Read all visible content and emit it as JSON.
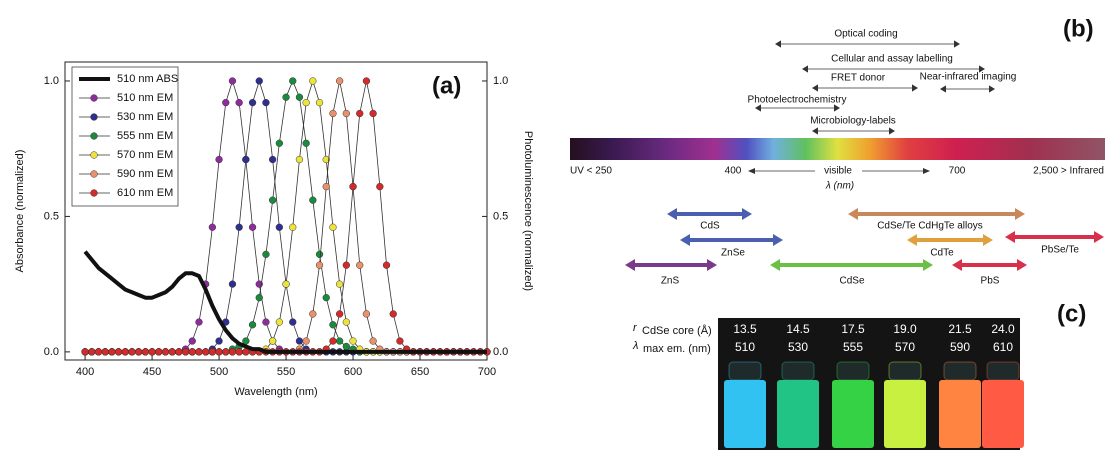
{
  "chart_data": {
    "type": "line",
    "panel_label": "(a)",
    "x_label": "Wavelength (nm)",
    "y_label": "Absorbance (normalized)",
    "y2_label": "Photoluminescence (normalized)",
    "x": [
      400,
      405,
      410,
      415,
      420,
      425,
      430,
      435,
      440,
      445,
      450,
      455,
      460,
      465,
      470,
      475,
      480,
      485,
      490,
      495,
      500,
      505,
      510,
      515,
      520,
      525,
      530,
      535,
      540,
      545,
      550,
      555,
      560,
      565,
      570,
      575,
      580,
      585,
      590,
      595,
      600,
      605,
      610,
      615,
      620,
      625,
      630,
      635,
      640,
      645,
      650,
      655,
      660,
      665,
      670,
      675,
      680,
      685,
      690,
      695,
      700
    ],
    "xlim": [
      385,
      700
    ],
    "ylim": [
      -0.03,
      1.07
    ],
    "y2lim": [
      -0.03,
      1.07
    ],
    "xticks": [
      400,
      450,
      500,
      550,
      600,
      650,
      700
    ],
    "yticks": [
      {
        "value": 0,
        "label": "0.0"
      },
      0.5,
      {
        "value": 1,
        "label": "1.0"
      }
    ],
    "y2ticks": [
      {
        "value": 0,
        "label": "0.0"
      },
      0.5,
      {
        "value": 1,
        "label": "1.0"
      }
    ],
    "legend": "upper left",
    "series": [
      {
        "name": "510 nm ABS",
        "color": "#111111",
        "line_width": 4,
        "axis": "y",
        "values": [
          0.37,
          0.34,
          0.31,
          0.29,
          0.27,
          0.25,
          0.23,
          0.22,
          0.21,
          0.2,
          0.2,
          0.21,
          0.22,
          0.24,
          0.27,
          0.29,
          0.29,
          0.28,
          0.23,
          0.17,
          0.12,
          0.08,
          0.05,
          0.03,
          0.02,
          0.01,
          0.01,
          0,
          0,
          0,
          0,
          0,
          0,
          0,
          0,
          0,
          0,
          0,
          0,
          0,
          0,
          0,
          0,
          0,
          0,
          0,
          0,
          0,
          0,
          0,
          0,
          0,
          0,
          0,
          0,
          0,
          0,
          0,
          0,
          0,
          0
        ]
      },
      {
        "name": "510 nm EM",
        "color": "#8e2c9e",
        "marker": "circle",
        "axis": "y2",
        "values": [
          0,
          0,
          0,
          0,
          0,
          0,
          0,
          0,
          0,
          0,
          0,
          0,
          0,
          0,
          0,
          0.01,
          0.04,
          0.11,
          0.25,
          0.46,
          0.71,
          0.92,
          1,
          0.92,
          0.71,
          0.46,
          0.25,
          0.11,
          0.04,
          0.01,
          0,
          0,
          0,
          0,
          0,
          0,
          0,
          0,
          0,
          0,
          0,
          0,
          0,
          0,
          0,
          0,
          0,
          0,
          0,
          0,
          0,
          0,
          0,
          0,
          0,
          0,
          0,
          0,
          0,
          0,
          0
        ]
      },
      {
        "name": "530 nm EM",
        "color": "#2e2f8f",
        "marker": "circle",
        "axis": "y2",
        "values": [
          0,
          0,
          0,
          0,
          0,
          0,
          0,
          0,
          0,
          0,
          0,
          0,
          0,
          0,
          0,
          0,
          0,
          0,
          0,
          0.01,
          0.04,
          0.11,
          0.25,
          0.46,
          0.71,
          0.92,
          1,
          0.92,
          0.71,
          0.46,
          0.25,
          0.11,
          0.04,
          0.01,
          0,
          0,
          0,
          0,
          0,
          0,
          0,
          0,
          0,
          0,
          0,
          0,
          0,
          0,
          0,
          0,
          0,
          0,
          0,
          0,
          0,
          0,
          0,
          0,
          0,
          0,
          0
        ]
      },
      {
        "name": "555 nm EM",
        "color": "#1b8a3c",
        "marker": "circle",
        "axis": "y2",
        "values": [
          0,
          0,
          0,
          0,
          0,
          0,
          0,
          0,
          0,
          0,
          0,
          0,
          0,
          0,
          0,
          0,
          0,
          0,
          0,
          0,
          0,
          0,
          0.01,
          0.02,
          0.04,
          0.1,
          0.2,
          0.36,
          0.56,
          0.77,
          0.94,
          1,
          0.94,
          0.77,
          0.56,
          0.36,
          0.2,
          0.1,
          0.04,
          0.02,
          0.01,
          0,
          0,
          0,
          0,
          0,
          0,
          0,
          0,
          0,
          0,
          0,
          0,
          0,
          0,
          0,
          0,
          0,
          0,
          0,
          0
        ]
      },
      {
        "name": "570 nm EM",
        "color": "#ece33c",
        "marker": "circle",
        "axis": "y2",
        "values": [
          0,
          0,
          0,
          0,
          0,
          0,
          0,
          0,
          0,
          0,
          0,
          0,
          0,
          0,
          0,
          0,
          0,
          0,
          0,
          0,
          0,
          0,
          0,
          0,
          0,
          0,
          0,
          0.01,
          0.04,
          0.11,
          0.25,
          0.46,
          0.71,
          0.92,
          1,
          0.92,
          0.71,
          0.46,
          0.25,
          0.11,
          0.04,
          0.01,
          0,
          0,
          0,
          0,
          0,
          0,
          0,
          0,
          0,
          0,
          0,
          0,
          0,
          0,
          0,
          0,
          0,
          0,
          0
        ]
      },
      {
        "name": "590 nm EM",
        "color": "#e8916a",
        "marker": "circle",
        "axis": "y2",
        "values": [
          0,
          0,
          0,
          0,
          0,
          0,
          0,
          0,
          0,
          0,
          0,
          0,
          0,
          0,
          0,
          0,
          0,
          0,
          0,
          0,
          0,
          0,
          0,
          0,
          0,
          0,
          0,
          0,
          0,
          0,
          0,
          0,
          0.01,
          0.04,
          0.14,
          0.32,
          0.61,
          0.88,
          1,
          0.88,
          0.61,
          0.32,
          0.14,
          0.04,
          0.01,
          0,
          0,
          0,
          0,
          0,
          0,
          0,
          0,
          0,
          0,
          0,
          0,
          0,
          0,
          0,
          0
        ]
      },
      {
        "name": "610 nm EM",
        "color": "#d42a2a",
        "marker": "circle",
        "axis": "y2",
        "values": [
          0,
          0,
          0,
          0,
          0,
          0,
          0,
          0,
          0,
          0,
          0,
          0,
          0,
          0,
          0,
          0,
          0,
          0,
          0,
          0,
          0,
          0,
          0,
          0,
          0,
          0,
          0,
          0,
          0,
          0,
          0,
          0,
          0,
          0,
          0,
          0,
          0.01,
          0.04,
          0.14,
          0.32,
          0.61,
          0.88,
          1,
          0.88,
          0.61,
          0.32,
          0.14,
          0.04,
          0.01,
          0,
          0,
          0,
          0,
          0,
          0,
          0,
          0,
          0,
          0,
          0,
          0
        ]
      }
    ]
  },
  "panel_b": {
    "label": "(b)",
    "applications": [
      "Optical coding",
      "Cellular and assay labelling",
      "FRET donor",
      "Near-infrared imaging",
      "Photoelectrochemistry",
      "Microbiology-labels"
    ],
    "spectrum": {
      "uv": "UV < 250",
      "mark_400": "400",
      "visible": "visible",
      "mark_700": "700",
      "infrared": "2,500 > Infrared",
      "axis": "λ (nm)"
    },
    "materials": [
      "CdS",
      "ZnSe",
      "ZnS",
      "CdSe",
      "CdSe/Te CdHgTe alloys",
      "CdTe",
      "PbS",
      "PbSe/Te"
    ]
  },
  "panel_c": {
    "label": "(c)",
    "radius_symbol": "r",
    "radius_sub": "CdSe core (Å)",
    "lambda_symbol": "λ",
    "lambda_sub": "max em. (nm)",
    "radii": [
      "13.5",
      "14.5",
      "17.5",
      "19.0",
      "21.5",
      "24.0"
    ],
    "emissions": [
      "510",
      "530",
      "555",
      "570",
      "590",
      "610"
    ]
  }
}
